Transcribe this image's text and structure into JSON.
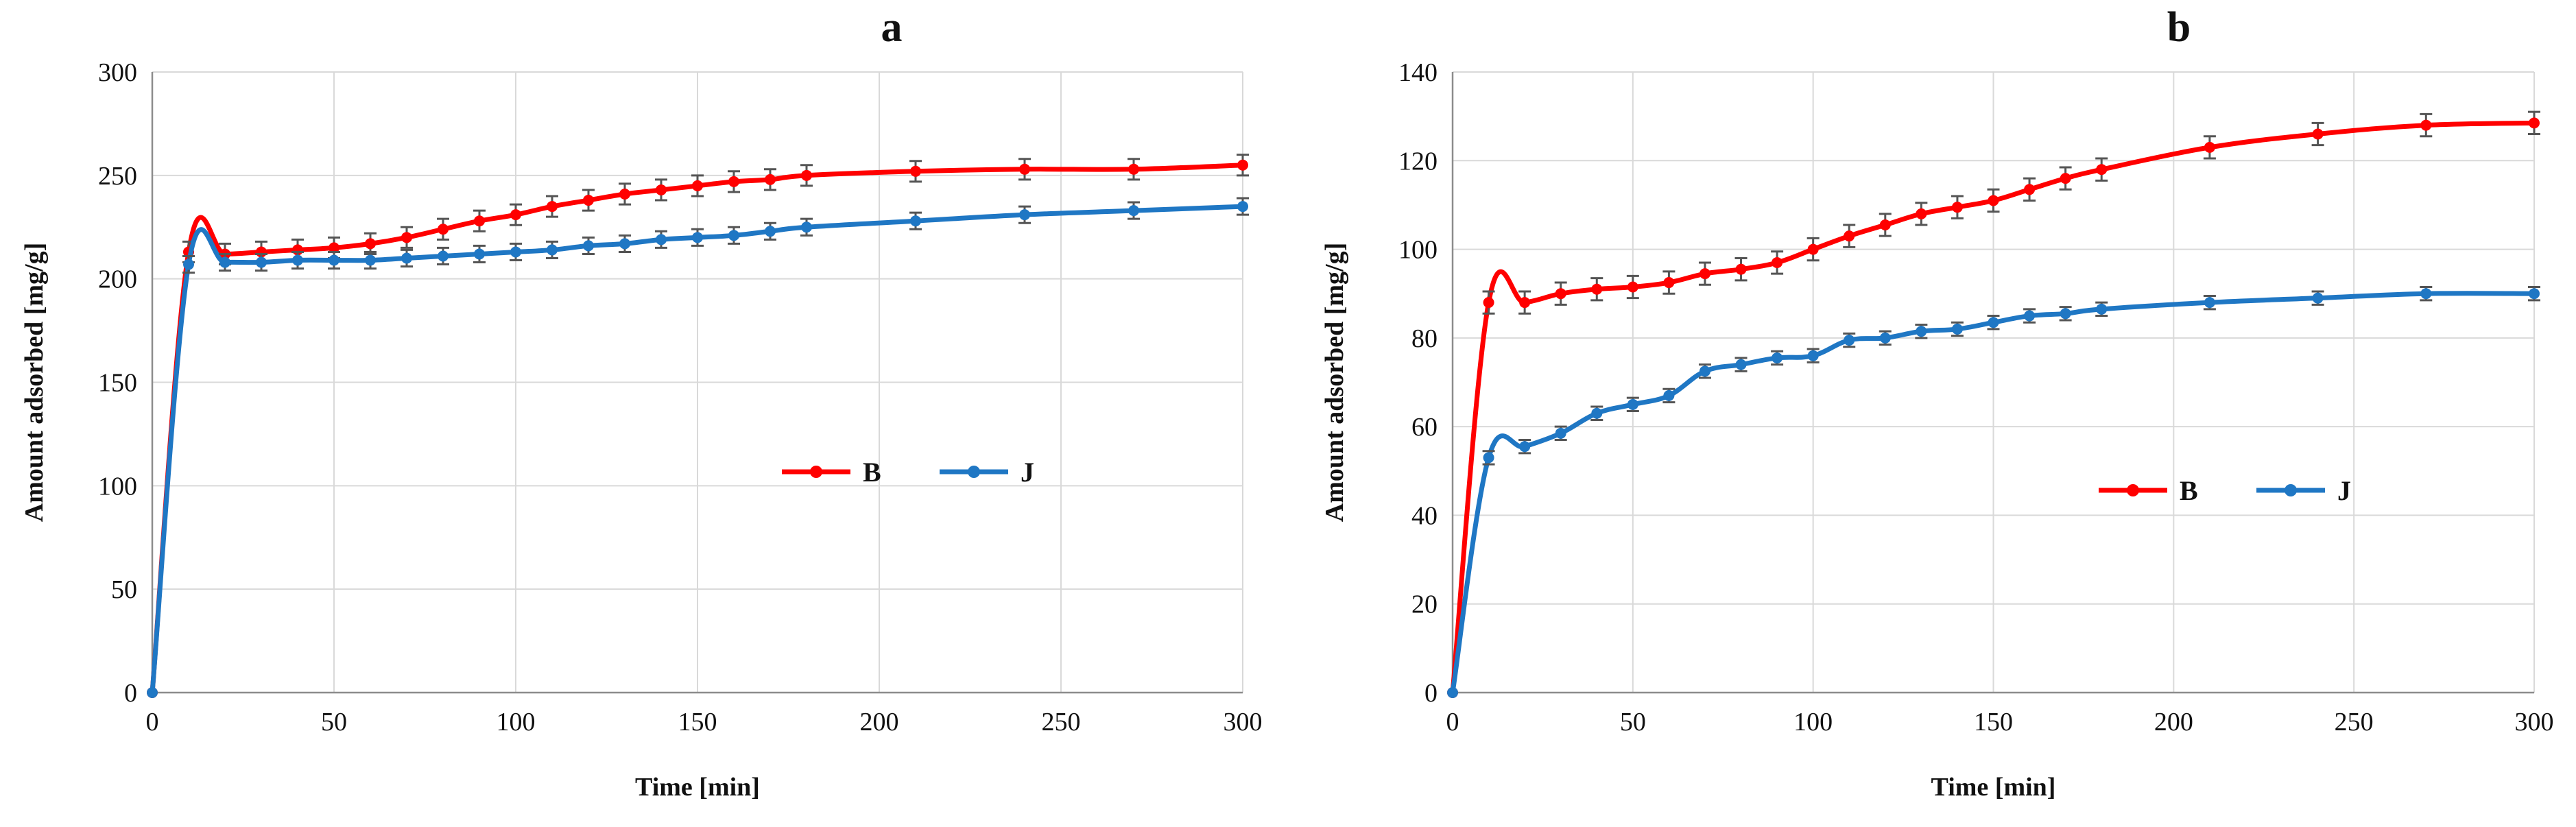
{
  "chart_data": [
    {
      "type": "line",
      "panel_label": "a",
      "xlabel": "Time [min]",
      "ylabel": "Amount adsorbed [mg/g]",
      "xlim": [
        0,
        300
      ],
      "ylim": [
        0,
        300
      ],
      "x_ticks": [
        0,
        50,
        100,
        150,
        200,
        250,
        300
      ],
      "y_ticks": [
        0,
        50,
        100,
        150,
        200,
        250,
        300
      ],
      "grid": true,
      "legend_position": "center-right",
      "series": [
        {
          "name": "B",
          "color": "#ff0000",
          "x": [
            0,
            10,
            20,
            30,
            40,
            50,
            60,
            70,
            80,
            90,
            100,
            110,
            120,
            130,
            140,
            150,
            160,
            170,
            180,
            210,
            240,
            270,
            300
          ],
          "y": [
            0,
            213,
            212,
            213,
            214,
            215,
            217,
            220,
            224,
            228,
            231,
            235,
            238,
            241,
            243,
            245,
            247,
            248,
            250,
            252,
            253,
            253,
            255
          ],
          "err": [
            0,
            5,
            5,
            5,
            5,
            5,
            5,
            5,
            5,
            5,
            5,
            5,
            5,
            5,
            5,
            5,
            5,
            5,
            5,
            5,
            5,
            5,
            5
          ]
        },
        {
          "name": "J",
          "color": "#1f77c4",
          "x": [
            0,
            10,
            20,
            30,
            40,
            50,
            60,
            70,
            80,
            90,
            100,
            110,
            120,
            130,
            140,
            150,
            160,
            170,
            180,
            210,
            240,
            270,
            300
          ],
          "y": [
            0,
            207,
            208,
            208,
            209,
            209,
            209,
            210,
            211,
            212,
            213,
            214,
            216,
            217,
            219,
            220,
            221,
            223,
            225,
            228,
            231,
            233,
            235
          ],
          "err": [
            0,
            4,
            4,
            4,
            4,
            4,
            4,
            4,
            4,
            4,
            4,
            4,
            4,
            4,
            4,
            4,
            4,
            4,
            4,
            4,
            4,
            4,
            4
          ]
        }
      ]
    },
    {
      "type": "line",
      "panel_label": "b",
      "xlabel": "Time [min]",
      "ylabel": "Amount adsorbed [mg/g]",
      "xlim": [
        0,
        300
      ],
      "ylim": [
        0,
        140
      ],
      "x_ticks": [
        0,
        50,
        100,
        150,
        200,
        250,
        300
      ],
      "y_ticks": [
        0,
        20,
        40,
        60,
        80,
        100,
        120,
        140
      ],
      "grid": true,
      "legend_position": "center-right",
      "series": [
        {
          "name": "B",
          "color": "#ff0000",
          "x": [
            0,
            10,
            20,
            30,
            40,
            50,
            60,
            70,
            80,
            90,
            100,
            110,
            120,
            130,
            140,
            150,
            160,
            170,
            180,
            210,
            240,
            270,
            300
          ],
          "y": [
            0,
            88,
            88,
            90,
            91,
            91.5,
            92.5,
            94.5,
            95.5,
            97,
            100,
            103,
            105.5,
            108,
            109.5,
            111,
            113.5,
            116,
            118,
            123,
            126,
            128,
            128.5
          ],
          "err": [
            0,
            2.5,
            2.5,
            2.5,
            2.5,
            2.5,
            2.5,
            2.5,
            2.5,
            2.5,
            2.5,
            2.5,
            2.5,
            2.5,
            2.5,
            2.5,
            2.5,
            2.5,
            2.5,
            2.5,
            2.5,
            2.5,
            2.5
          ]
        },
        {
          "name": "J",
          "color": "#1f77c4",
          "x": [
            0,
            10,
            20,
            30,
            40,
            50,
            60,
            70,
            80,
            90,
            100,
            110,
            120,
            130,
            140,
            150,
            160,
            170,
            180,
            210,
            240,
            270,
            300
          ],
          "y": [
            0,
            53,
            55.5,
            58.5,
            63,
            65,
            67,
            72.5,
            74,
            75.5,
            76,
            79.5,
            80,
            81.5,
            82,
            83.5,
            85,
            85.5,
            86.5,
            88,
            89,
            90,
            90
          ],
          "err": [
            0,
            1.5,
            1.5,
            1.5,
            1.5,
            1.5,
            1.5,
            1.5,
            1.5,
            1.5,
            1.5,
            1.5,
            1.5,
            1.5,
            1.5,
            1.5,
            1.5,
            1.5,
            1.5,
            1.5,
            1.5,
            1.5,
            1.5
          ]
        }
      ]
    }
  ]
}
